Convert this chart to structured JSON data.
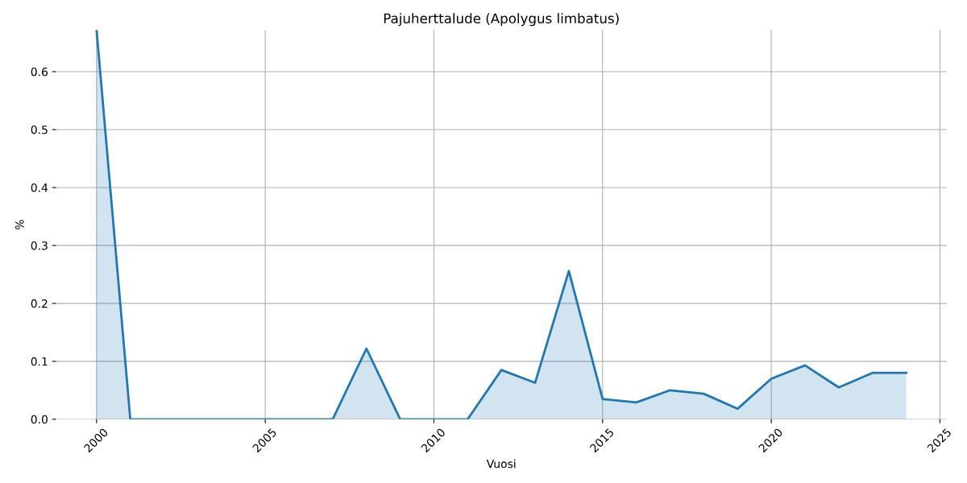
{
  "chart_data": {
    "type": "area",
    "title": "Pajuherttalude (Apolygus limbatus)",
    "xlabel": "Vuosi",
    "ylabel": "%",
    "x": [
      2000,
      2001,
      2002,
      2003,
      2004,
      2005,
      2006,
      2007,
      2008,
      2009,
      2010,
      2011,
      2012,
      2013,
      2014,
      2015,
      2016,
      2017,
      2018,
      2019,
      2020,
      2021,
      2022,
      2023,
      2024
    ],
    "series": [
      {
        "color": "#1f77b4",
        "values": [
          0.672,
          0,
          0,
          0,
          0,
          0,
          0,
          0,
          0.122,
          0,
          0,
          0,
          0.085,
          0.063,
          0.256,
          0.035,
          0.029,
          0.05,
          0.044,
          0.018,
          0.07,
          0.093,
          0.055,
          0.08,
          0.08
        ]
      }
    ],
    "xlim": [
      1998.8,
      2025.2
    ],
    "xticks": [
      2000,
      2005,
      2010,
      2015,
      2020,
      2025
    ],
    "ylim": [
      0,
      0.672
    ],
    "yticks": [
      {
        "value": 0,
        "label": "0.0"
      },
      0.1,
      0.2,
      0.3,
      0.4,
      0.5,
      0.6
    ],
    "grid": true
  }
}
